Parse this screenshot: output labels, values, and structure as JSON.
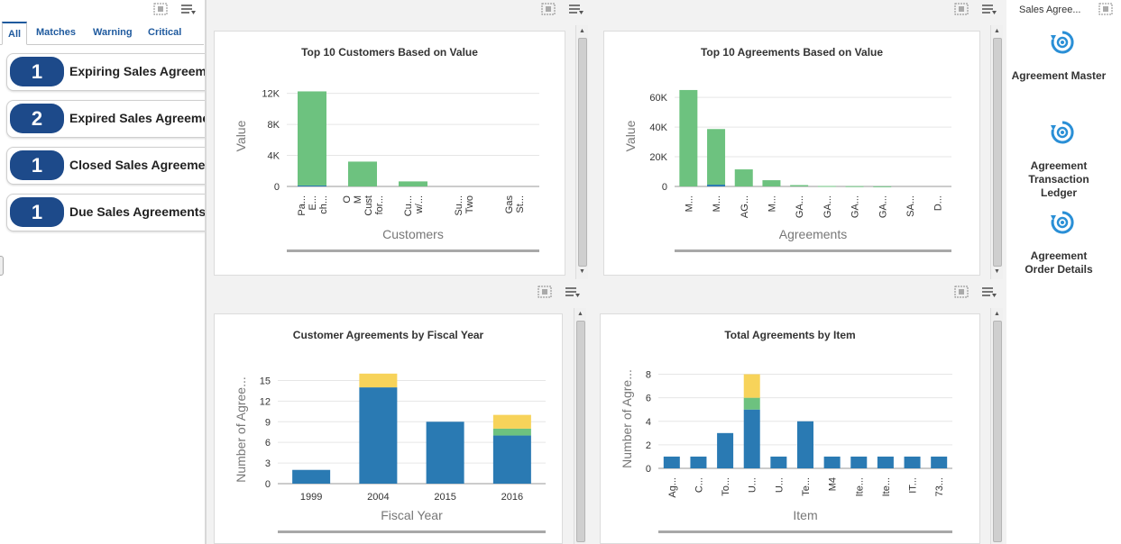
{
  "watchlist": {
    "tabs": [
      "All",
      "Matches",
      "Warning",
      "Critical"
    ],
    "items": [
      {
        "count": "1",
        "label": "Expiring Sales Agreements"
      },
      {
        "count": "2",
        "label": "Expired Sales Agreements"
      },
      {
        "count": "1",
        "label": "Closed Sales Agreements"
      },
      {
        "count": "1",
        "label": "Due Sales Agreements"
      }
    ]
  },
  "springboard": {
    "title": "Sales Agree...",
    "items": [
      {
        "label": "Agreement Master",
        "icon": "refresh-gear-icon"
      },
      {
        "label": "Agreement Transaction Ledger",
        "icon": "refresh-gear-icon"
      },
      {
        "label": "Agreement Order Details",
        "icon": "refresh-gear-icon"
      }
    ]
  },
  "colors": {
    "blue": "#2a7ab3",
    "green": "#6dc27f",
    "yellow": "#f7d35a",
    "accent": "#1d4a8a"
  },
  "chart_data": [
    {
      "type": "bar",
      "title": "Top 10 Customers Based on Value",
      "xlabel": "Customers",
      "ylabel": "Value",
      "ylim": [
        0,
        13000
      ],
      "yticks": [
        "0",
        "4K",
        "8K",
        "12K"
      ],
      "ytick_values": [
        0,
        4000,
        8000,
        12000
      ],
      "categories": [
        "Pa... E... ch...",
        "O M Cust for...",
        "Cu... w/...",
        "Su... Two",
        "Gas St..."
      ],
      "series": [
        {
          "color": "#2a7ab3",
          "values": [
            120,
            0,
            0,
            0,
            0
          ]
        },
        {
          "color": "#6dc27f",
          "values": [
            12130,
            3200,
            650,
            0,
            0
          ]
        }
      ]
    },
    {
      "type": "bar",
      "title": "Top 10 Agreements Based on Value",
      "xlabel": "Agreements",
      "ylabel": "Value",
      "ylim": [
        0,
        68000
      ],
      "yticks": [
        "0",
        "20K",
        "40K",
        "60K"
      ],
      "ytick_values": [
        0,
        20000,
        40000,
        60000
      ],
      "categories": [
        "M...",
        "M...",
        "AG...",
        "M...",
        "GA...",
        "GA...",
        "GA...",
        "GA...",
        "SA...",
        "D..."
      ],
      "series": [
        {
          "color": "#2a7ab3",
          "values": [
            0,
            1200,
            0,
            0,
            0,
            0,
            0,
            0,
            0,
            0
          ]
        },
        {
          "color": "#6dc27f",
          "values": [
            65000,
            37500,
            11500,
            4200,
            900,
            300,
            200,
            100,
            0,
            0
          ]
        }
      ]
    },
    {
      "type": "bar",
      "title": "Customer Agreements by Fiscal Year",
      "xlabel": "Fiscal Year",
      "ylabel": "Number of Agree...",
      "ylim": [
        0,
        16.5
      ],
      "yticks": [
        "0",
        "3",
        "6",
        "9",
        "12",
        "15"
      ],
      "ytick_values": [
        0,
        3,
        6,
        9,
        12,
        15
      ],
      "categories": [
        "1999",
        "2004",
        "2015",
        "2016"
      ],
      "series": [
        {
          "color": "#2a7ab3",
          "values": [
            2,
            14,
            9,
            7
          ]
        },
        {
          "color": "#6dc27f",
          "values": [
            0,
            0,
            0,
            1
          ]
        },
        {
          "color": "#f7d35a",
          "values": [
            0,
            2,
            0,
            2
          ]
        }
      ]
    },
    {
      "type": "bar",
      "title": "Total Agreements by Item",
      "xlabel": "Item",
      "ylabel": "Number of Agre...",
      "ylim": [
        0,
        8.5
      ],
      "yticks": [
        "0",
        "2",
        "4",
        "6",
        "8"
      ],
      "ytick_values": [
        0,
        2,
        4,
        6,
        8
      ],
      "categories": [
        "Ag...",
        "C...",
        "To...",
        "U...",
        "U...",
        "Te...",
        "M4",
        "Ite...",
        "Ite...",
        "IT...",
        "73..."
      ],
      "series": [
        {
          "color": "#2a7ab3",
          "values": [
            1,
            1,
            3,
            5,
            1,
            4,
            1,
            1,
            1,
            1,
            1
          ]
        },
        {
          "color": "#6dc27f",
          "values": [
            0,
            0,
            0,
            1,
            0,
            0,
            0,
            0,
            0,
            0,
            0
          ]
        },
        {
          "color": "#f7d35a",
          "values": [
            0,
            0,
            0,
            2,
            0,
            0,
            0,
            0,
            0,
            0,
            0
          ]
        }
      ]
    }
  ]
}
